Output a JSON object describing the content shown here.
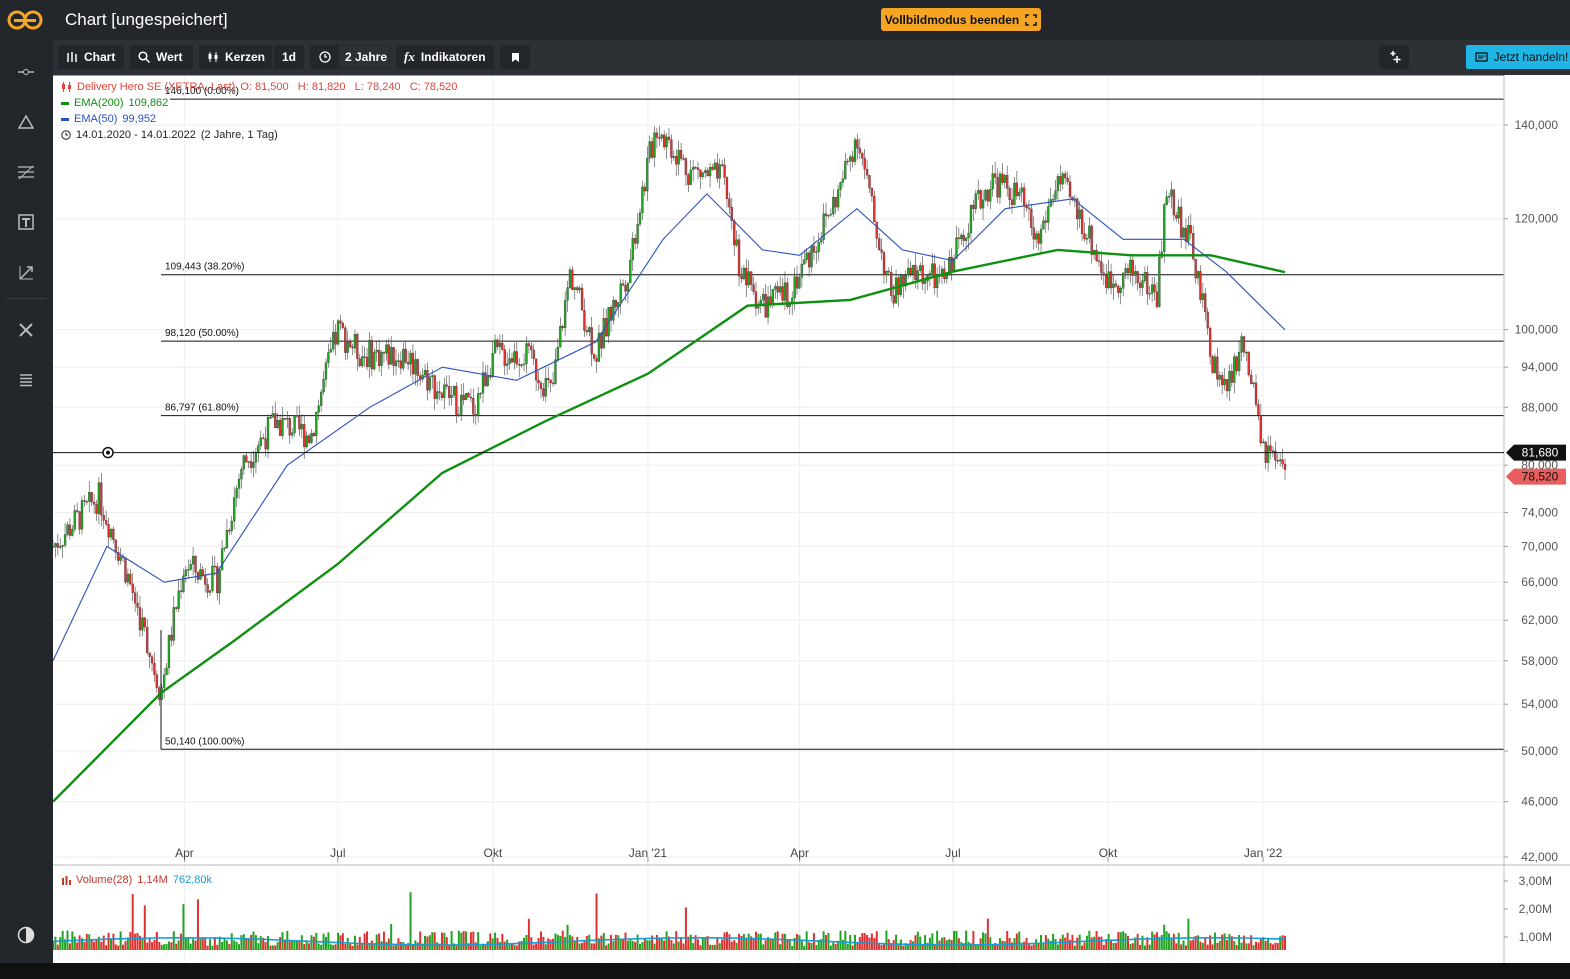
{
  "window": {
    "title": "Chart [ungespeichert]",
    "fullscreen_button": "Vollbildmodus beenden"
  },
  "toolbar": {
    "chart_label": "Chart",
    "search_label": "Wert",
    "type_label": "Kerzen",
    "interval_label": "1d",
    "range_label": "2 Jahre",
    "indicators_label": "Indikatoren",
    "trade_label": "Jetzt handeln!"
  },
  "left_rail": {
    "icons": [
      "line-tool-icon",
      "triangle-tool-icon",
      "fibonacci-tool-icon",
      "text-tool-icon",
      "annotation-tool-icon",
      "settings-tools-icon",
      "list-icon",
      "theme-toggle-icon"
    ]
  },
  "legend": {
    "instrument": "Delivery Hero SE (XETRA, Last)",
    "ohlc": "O: 81,500   H: 81,820   L: 78,240   C: 78,520",
    "ema200_label": "EMA(200)",
    "ema200_value": "109,862",
    "ema50_label": "EMA(50)",
    "ema50_value": "99,952",
    "date_range": "14.01.2020 - 14.01.2022",
    "date_range_note": "(2 Jahre, 1 Tag)",
    "volume_label": "Volume(28)",
    "volume_value": "1,14M",
    "volume_ma": "762,80k"
  },
  "chart_data": {
    "type": "candlestick",
    "price_axis": {
      "scale": "log",
      "range": [
        42000,
        152000
      ],
      "ticks": [
        "140,000",
        "120,000",
        "100,000",
        "94,000",
        "88,000",
        "80,000",
        "74,000",
        "70,000",
        "66,000",
        "62,000",
        "58,000",
        "54,000",
        "50,000",
        "46,000",
        "42,000"
      ]
    },
    "time_axis": {
      "range": [
        "14.01.2020",
        "14.01.2022"
      ],
      "ticks": [
        "Apr",
        "Jul",
        "Okt",
        "Jan '21",
        "Apr",
        "Jul",
        "Okt",
        "Jan '22"
      ]
    },
    "last_price": "78,520",
    "crosshair_price": "81,680",
    "fibonacci": [
      {
        "value": 146100,
        "label": "146,100 (0.00%)"
      },
      {
        "value": 109443,
        "label": "109,443 (38.20%)"
      },
      {
        "value": 98120,
        "label": "98,120 (50.00%)"
      },
      {
        "value": 86797,
        "label": "86,797 (61.80%)"
      },
      {
        "value": 50140,
        "label": "50,140 (100.00%)"
      }
    ],
    "close_keypoints": [
      [
        "2020-01-14",
        70
      ],
      [
        "2020-02-10",
        76
      ],
      [
        "2020-02-25",
        68
      ],
      [
        "2020-03-18",
        55
      ],
      [
        "2020-04-01",
        68
      ],
      [
        "2020-04-20",
        66
      ],
      [
        "2020-05-05",
        80
      ],
      [
        "2020-05-25",
        86
      ],
      [
        "2020-06-15",
        84
      ],
      [
        "2020-07-01",
        100
      ],
      [
        "2020-07-15",
        96
      ],
      [
        "2020-08-10",
        96
      ],
      [
        "2020-09-01",
        90
      ],
      [
        "2020-09-20",
        88
      ],
      [
        "2020-10-01",
        96
      ],
      [
        "2020-10-20",
        96
      ],
      [
        "2020-11-05",
        90
      ],
      [
        "2020-11-16",
        110
      ],
      [
        "2020-12-01",
        96
      ],
      [
        "2020-12-20",
        110
      ],
      [
        "2021-01-06",
        140
      ],
      [
        "2021-01-25",
        130
      ],
      [
        "2021-02-15",
        128
      ],
      [
        "2021-02-25",
        110
      ],
      [
        "2021-03-10",
        104
      ],
      [
        "2021-03-25",
        106
      ],
      [
        "2021-04-10",
        115
      ],
      [
        "2021-04-25",
        126
      ],
      [
        "2021-05-05",
        138
      ],
      [
        "2021-05-15",
        120
      ],
      [
        "2021-05-25",
        106
      ],
      [
        "2021-06-10",
        110
      ],
      [
        "2021-06-25",
        108
      ],
      [
        "2021-07-10",
        120
      ],
      [
        "2021-07-25",
        128
      ],
      [
        "2021-08-10",
        124
      ],
      [
        "2021-08-20",
        115
      ],
      [
        "2021-09-01",
        128
      ],
      [
        "2021-09-15",
        120
      ],
      [
        "2021-10-01",
        108
      ],
      [
        "2021-10-15",
        110
      ],
      [
        "2021-10-30",
        106
      ],
      [
        "2021-11-05",
        126
      ],
      [
        "2021-11-20",
        114
      ],
      [
        "2021-12-01",
        96
      ],
      [
        "2021-12-10",
        90
      ],
      [
        "2021-12-20",
        98
      ],
      [
        "2022-01-01",
        82
      ],
      [
        "2022-01-14",
        78.5
      ]
    ],
    "ema200_keypoints": [
      [
        "2020-01-14",
        46
      ],
      [
        "2020-03-18",
        55
      ],
      [
        "2020-05-01",
        60
      ],
      [
        "2020-07-01",
        68
      ],
      [
        "2020-09-01",
        79
      ],
      [
        "2020-11-01",
        86
      ],
      [
        "2021-01-01",
        93
      ],
      [
        "2021-03-01",
        104
      ],
      [
        "2021-05-01",
        105
      ],
      [
        "2021-07-01",
        110
      ],
      [
        "2021-09-01",
        114
      ],
      [
        "2021-10-15",
        113
      ],
      [
        "2021-12-01",
        113
      ],
      [
        "2022-01-14",
        109.9
      ]
    ],
    "ema50_keypoints": [
      [
        "2020-01-14",
        58
      ],
      [
        "2020-02-15",
        70
      ],
      [
        "2020-03-20",
        66
      ],
      [
        "2020-04-20",
        67
      ],
      [
        "2020-06-01",
        80
      ],
      [
        "2020-07-20",
        88
      ],
      [
        "2020-09-01",
        94
      ],
      [
        "2020-10-15",
        92
      ],
      [
        "2020-12-01",
        98
      ],
      [
        "2021-01-10",
        116
      ],
      [
        "2021-02-05",
        125
      ],
      [
        "2021-03-10",
        114
      ],
      [
        "2021-04-01",
        113
      ],
      [
        "2021-05-05",
        122
      ],
      [
        "2021-06-01",
        114
      ],
      [
        "2021-07-01",
        112
      ],
      [
        "2021-08-01",
        122
      ],
      [
        "2021-09-10",
        124
      ],
      [
        "2021-10-10",
        116
      ],
      [
        "2021-11-15",
        116
      ],
      [
        "2021-12-10",
        110
      ],
      [
        "2022-01-14",
        99.95
      ]
    ],
    "volume_axis": {
      "ticks": [
        "3,00M",
        "2,00M",
        "1,00M"
      ]
    }
  }
}
